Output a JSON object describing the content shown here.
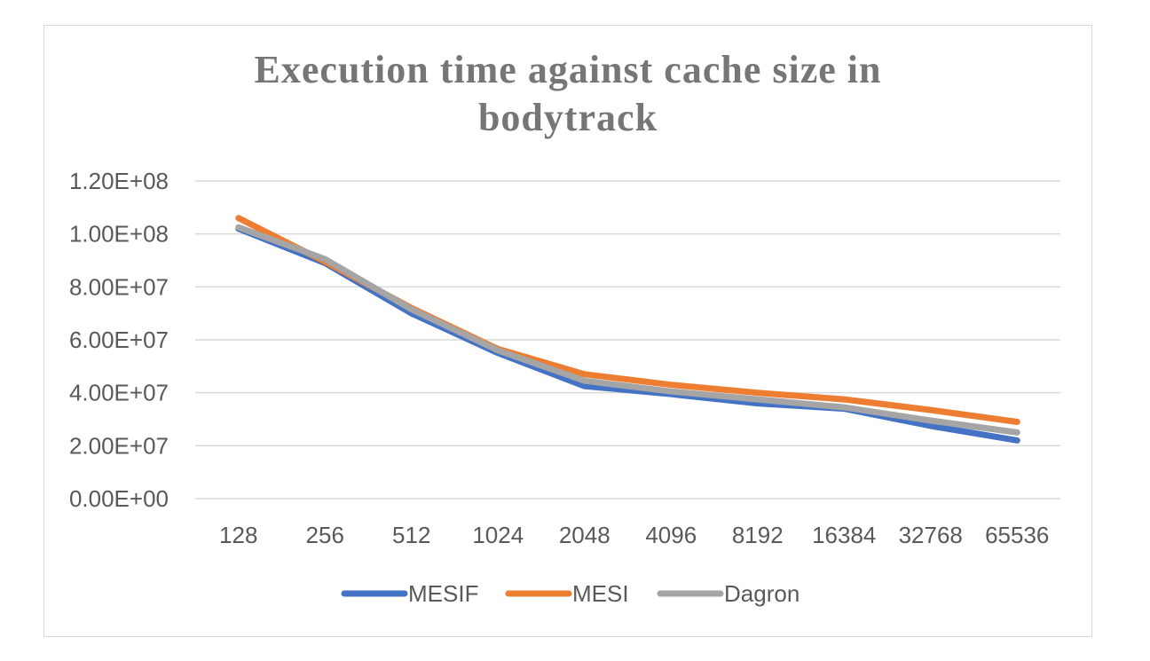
{
  "chart_data": {
    "type": "line",
    "title_lines": [
      "Execution time against cache size in",
      "bodytrack"
    ],
    "xlabel": "",
    "ylabel": "",
    "categories": [
      "128",
      "256",
      "512",
      "1024",
      "2048",
      "4096",
      "8192",
      "16384",
      "32768",
      "65536"
    ],
    "ylim": [
      0,
      120000000
    ],
    "yticks": [
      0,
      20000000,
      40000000,
      60000000,
      80000000,
      100000000,
      120000000
    ],
    "ytick_labels": [
      "0.00E+00",
      "2.00E+07",
      "4.00E+07",
      "6.00E+07",
      "8.00E+07",
      "1.00E+08",
      "1.20E+08"
    ],
    "grid": true,
    "legend_position": "bottom",
    "series": [
      {
        "name": "MESIF",
        "color": "#4472c4",
        "values": [
          102000000,
          89000000,
          70000000,
          55000000,
          42500000,
          39500000,
          36000000,
          34000000,
          27500000,
          22000000
        ]
      },
      {
        "name": "MESI",
        "color": "#ed7d31",
        "values": [
          106000000,
          89500000,
          72000000,
          56500000,
          47000000,
          43000000,
          40000000,
          37500000,
          33500000,
          29000000
        ]
      },
      {
        "name": "Dagron",
        "color": "#a5a5a5",
        "values": [
          102500000,
          90500000,
          71500000,
          56000000,
          44500000,
          40500000,
          37500000,
          34500000,
          29500000,
          25000000
        ]
      }
    ]
  }
}
